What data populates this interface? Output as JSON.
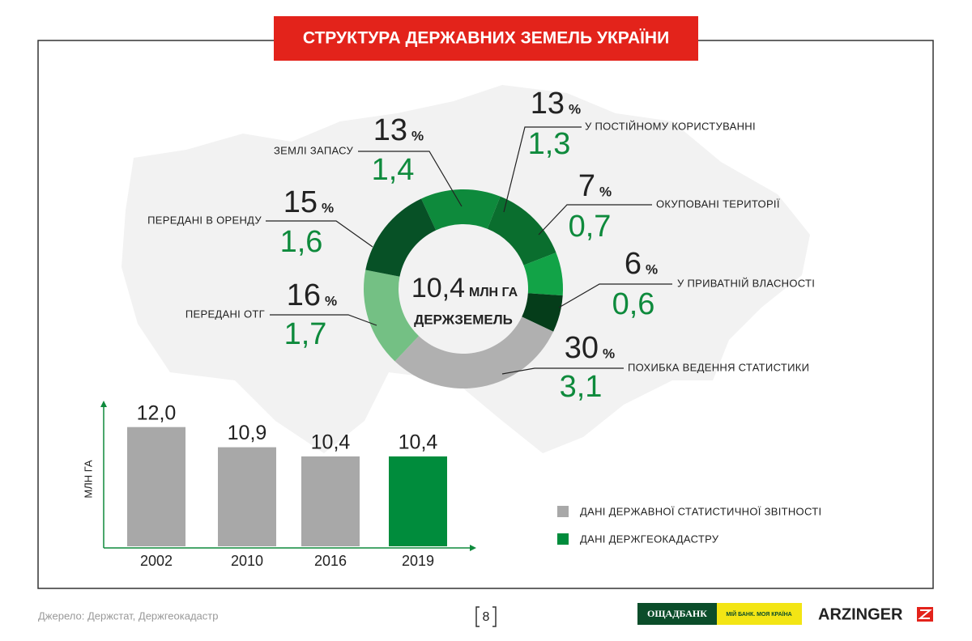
{
  "title": "СТРУКТУРА ДЕРЖАВНИХ ЗЕМЕЛЬ УКРАЇНИ",
  "chart_data": [
    {
      "type": "donut",
      "categories": [
        "ЗЕМЛІ ЗАПАСУ",
        "У ПОСТІЙНОМУ КОРИСТУВАННІ",
        "ОКУПОВАНІ ТЕРИТОРІЇ",
        "У ПРИВАТНІЙ ВЛАСНОСТІ",
        "ПОХИБКА ВЕДЕННЯ СТАТИСТИКИ",
        "ПЕРЕДАНІ ОТГ",
        "ПЕРЕДАНІ В ОРЕНДУ"
      ],
      "values": [
        13,
        13,
        7,
        6,
        30,
        16,
        15
      ],
      "unit": "%",
      "area_values": [
        1.4,
        1.3,
        0.7,
        0.6,
        3.1,
        1.7,
        1.6
      ],
      "area_labels": [
        "1,4",
        "1,3",
        "0,7",
        "0,6",
        "3,1",
        "1,7",
        "1,6"
      ],
      "colors": [
        "#0e8a3c",
        "#0a6e2e",
        "#12a347",
        "#053d1a",
        "#b0b0b0",
        "#74c084",
        "#075126"
      ],
      "center": {
        "value": 10.4,
        "label": "10,4",
        "unit": "МЛН ГА",
        "caption": "ДЕРЖЗЕМЕЛЬ"
      }
    },
    {
      "type": "bar",
      "categories": [
        "2002",
        "2010",
        "2016",
        "2019"
      ],
      "values": [
        12.0,
        10.9,
        10.4,
        10.4
      ],
      "value_labels": [
        "12,0",
        "10,9",
        "10,4",
        "10,4"
      ],
      "colors": [
        "#a8a8a8",
        "#a8a8a8",
        "#a8a8a8",
        "#008c3c"
      ],
      "ylabel": "МЛН ГА",
      "ylim": [
        5.5,
        13
      ],
      "legend": [
        {
          "name": "ДАНІ ДЕРЖАВНОЇ СТАТИСТИЧНОЇ ЗВІТНОСТІ",
          "color": "#a8a8a8"
        },
        {
          "name": "ДАНІ ДЕРЖГЕОКАДАСТРУ",
          "color": "#008c3c"
        }
      ]
    }
  ],
  "footer": {
    "source": "Джерело: Держстат, Держгеокадастр",
    "page": "8",
    "bank": "ОЩАДБАНК",
    "slogan": "МІЙ БАНК. МОЯ КРАЇНА",
    "partner": "ARZINGER"
  }
}
